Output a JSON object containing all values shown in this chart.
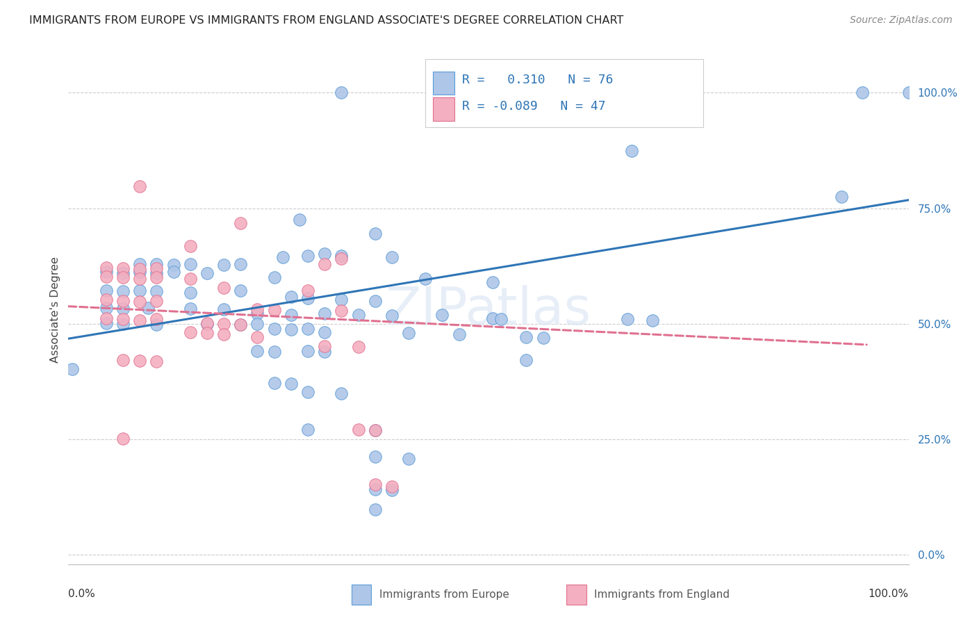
{
  "title": "IMMIGRANTS FROM EUROPE VS IMMIGRANTS FROM ENGLAND ASSOCIATE'S DEGREE CORRELATION CHART",
  "source": "Source: ZipAtlas.com",
  "ylabel": "Associate's Degree",
  "ytick_labels": [
    "0.0%",
    "25.0%",
    "50.0%",
    "75.0%",
    "100.0%"
  ],
  "ytick_values": [
    0.0,
    0.25,
    0.5,
    0.75,
    1.0
  ],
  "xlim": [
    0.0,
    1.0
  ],
  "ylim": [
    -0.02,
    1.08
  ],
  "watermark": "ZIPatlas",
  "legend": {
    "europe_R": "0.310",
    "europe_N": "76",
    "england_R": "-0.089",
    "england_N": "47"
  },
  "europe_color": "#aec6e8",
  "england_color": "#f4afc0",
  "europe_edge_color": "#5b9bd5",
  "england_edge_color": "#e07090",
  "europe_line_color": "#2e75b6",
  "england_line_color": "#e07090",
  "europe_scatter": [
    [
      0.325,
      1.0
    ],
    [
      0.945,
      1.0
    ],
    [
      1.0,
      1.0
    ],
    [
      0.67,
      0.875
    ],
    [
      0.92,
      0.775
    ],
    [
      0.275,
      0.725
    ],
    [
      0.365,
      0.695
    ],
    [
      0.255,
      0.645
    ],
    [
      0.285,
      0.648
    ],
    [
      0.305,
      0.652
    ],
    [
      0.325,
      0.648
    ],
    [
      0.385,
      0.645
    ],
    [
      0.085,
      0.63
    ],
    [
      0.105,
      0.63
    ],
    [
      0.125,
      0.628
    ],
    [
      0.145,
      0.63
    ],
    [
      0.185,
      0.628
    ],
    [
      0.205,
      0.63
    ],
    [
      0.045,
      0.612
    ],
    [
      0.065,
      0.61
    ],
    [
      0.085,
      0.612
    ],
    [
      0.105,
      0.61
    ],
    [
      0.125,
      0.612
    ],
    [
      0.165,
      0.61
    ],
    [
      0.245,
      0.6
    ],
    [
      0.425,
      0.598
    ],
    [
      0.505,
      0.59
    ],
    [
      0.045,
      0.572
    ],
    [
      0.065,
      0.57
    ],
    [
      0.085,
      0.572
    ],
    [
      0.105,
      0.57
    ],
    [
      0.145,
      0.568
    ],
    [
      0.205,
      0.572
    ],
    [
      0.265,
      0.558
    ],
    [
      0.285,
      0.555
    ],
    [
      0.325,
      0.552
    ],
    [
      0.365,
      0.55
    ],
    [
      0.045,
      0.535
    ],
    [
      0.065,
      0.533
    ],
    [
      0.095,
      0.535
    ],
    [
      0.145,
      0.533
    ],
    [
      0.185,
      0.532
    ],
    [
      0.225,
      0.522
    ],
    [
      0.265,
      0.52
    ],
    [
      0.305,
      0.522
    ],
    [
      0.345,
      0.52
    ],
    [
      0.385,
      0.518
    ],
    [
      0.445,
      0.52
    ],
    [
      0.505,
      0.512
    ],
    [
      0.515,
      0.51
    ],
    [
      0.665,
      0.51
    ],
    [
      0.695,
      0.508
    ],
    [
      0.045,
      0.502
    ],
    [
      0.065,
      0.5
    ],
    [
      0.105,
      0.498
    ],
    [
      0.165,
      0.5
    ],
    [
      0.205,
      0.498
    ],
    [
      0.225,
      0.5
    ],
    [
      0.245,
      0.49
    ],
    [
      0.265,
      0.488
    ],
    [
      0.285,
      0.49
    ],
    [
      0.305,
      0.482
    ],
    [
      0.405,
      0.48
    ],
    [
      0.465,
      0.478
    ],
    [
      0.545,
      0.472
    ],
    [
      0.565,
      0.47
    ],
    [
      0.225,
      0.442
    ],
    [
      0.245,
      0.44
    ],
    [
      0.285,
      0.442
    ],
    [
      0.305,
      0.44
    ],
    [
      0.005,
      0.402
    ],
    [
      0.545,
      0.422
    ],
    [
      0.245,
      0.372
    ],
    [
      0.265,
      0.37
    ],
    [
      0.285,
      0.352
    ],
    [
      0.325,
      0.35
    ],
    [
      0.285,
      0.272
    ],
    [
      0.365,
      0.27
    ],
    [
      0.365,
      0.212
    ],
    [
      0.405,
      0.208
    ],
    [
      0.365,
      0.142
    ],
    [
      0.385,
      0.14
    ],
    [
      0.365,
      0.098
    ]
  ],
  "england_scatter": [
    [
      0.085,
      0.798
    ],
    [
      0.205,
      0.718
    ],
    [
      0.145,
      0.668
    ],
    [
      0.325,
      0.642
    ],
    [
      0.305,
      0.63
    ],
    [
      0.045,
      0.622
    ],
    [
      0.065,
      0.62
    ],
    [
      0.085,
      0.618
    ],
    [
      0.105,
      0.62
    ],
    [
      0.045,
      0.602
    ],
    [
      0.065,
      0.6
    ],
    [
      0.085,
      0.598
    ],
    [
      0.105,
      0.6
    ],
    [
      0.145,
      0.598
    ],
    [
      0.185,
      0.578
    ],
    [
      0.285,
      0.572
    ],
    [
      0.045,
      0.552
    ],
    [
      0.065,
      0.55
    ],
    [
      0.085,
      0.548
    ],
    [
      0.105,
      0.55
    ],
    [
      0.225,
      0.532
    ],
    [
      0.245,
      0.53
    ],
    [
      0.325,
      0.528
    ],
    [
      0.045,
      0.512
    ],
    [
      0.065,
      0.51
    ],
    [
      0.085,
      0.508
    ],
    [
      0.105,
      0.51
    ],
    [
      0.165,
      0.502
    ],
    [
      0.185,
      0.5
    ],
    [
      0.205,
      0.498
    ],
    [
      0.145,
      0.482
    ],
    [
      0.165,
      0.48
    ],
    [
      0.185,
      0.478
    ],
    [
      0.225,
      0.472
    ],
    [
      0.305,
      0.452
    ],
    [
      0.345,
      0.45
    ],
    [
      0.065,
      0.422
    ],
    [
      0.085,
      0.42
    ],
    [
      0.105,
      0.418
    ],
    [
      0.345,
      0.272
    ],
    [
      0.365,
      0.27
    ],
    [
      0.065,
      0.252
    ],
    [
      0.365,
      0.152
    ],
    [
      0.385,
      0.148
    ]
  ],
  "europe_line": {
    "x0": 0.0,
    "y0": 0.468,
    "x1": 1.0,
    "y1": 0.768
  },
  "england_line": {
    "x0": 0.0,
    "y0": 0.538,
    "x1": 0.95,
    "y1": 0.455
  }
}
